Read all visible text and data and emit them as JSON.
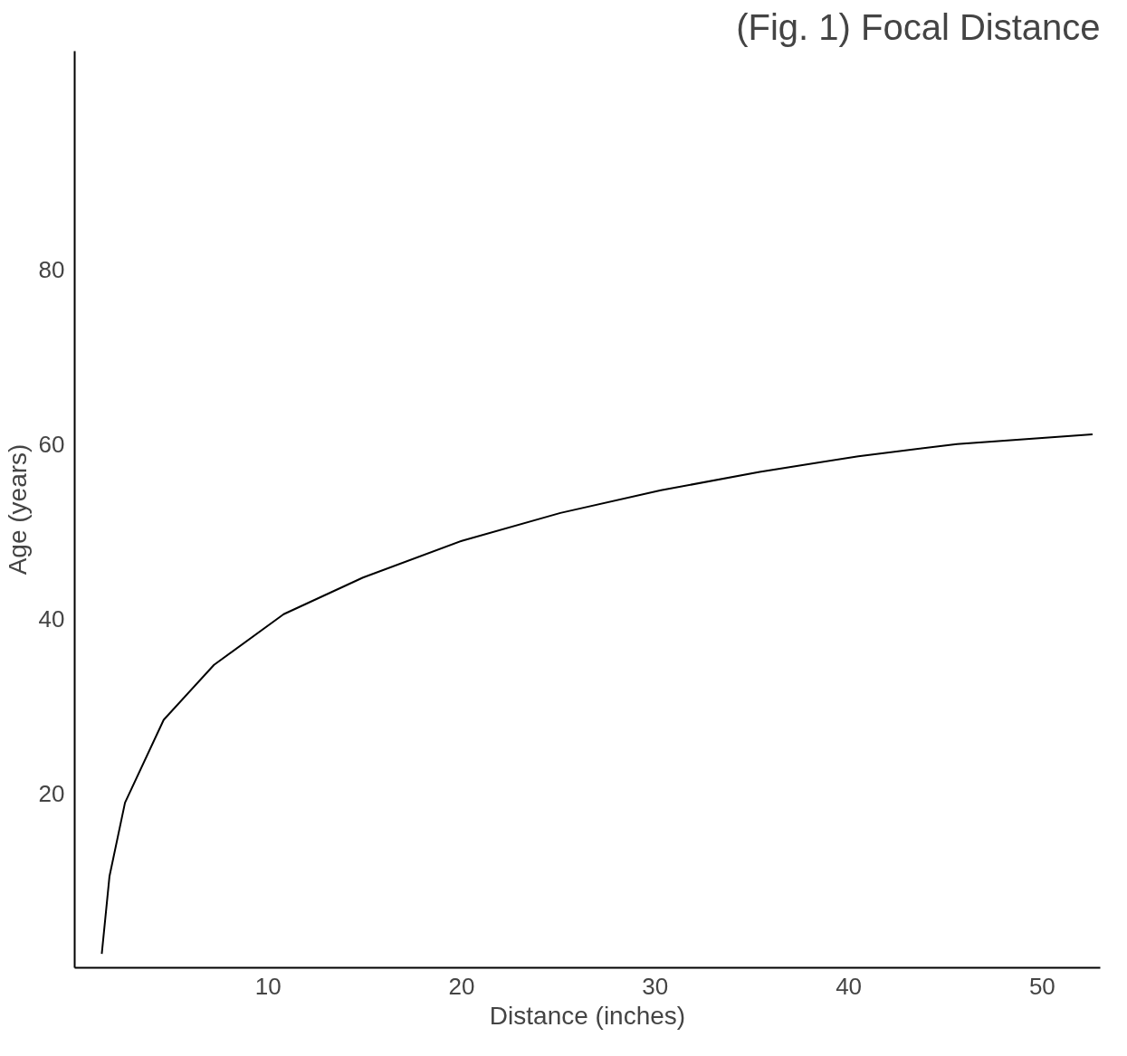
{
  "chart_data": {
    "type": "line",
    "title": "(Fig. 1) Focal Distance",
    "xlabel": "Distance (inches)",
    "ylabel": "Age (years)",
    "x": [
      1.4,
      1.8,
      2.6,
      4.6,
      7.2,
      10.8,
      14.9,
      20.0,
      25.1,
      30.3,
      35.4,
      40.5,
      45.6,
      52.6
    ],
    "series": [
      {
        "color": "#000000",
        "values": [
          1.6,
          10.5,
          18.9,
          28.4,
          34.7,
          40.5,
          44.7,
          48.9,
          52.1,
          54.7,
          56.8,
          58.6,
          60.0,
          61.1
        ]
      }
    ],
    "xlim": [
      0,
      53
    ],
    "ylim": [
      0,
      105
    ],
    "xticks": [
      10,
      20,
      30,
      40,
      50
    ],
    "yticks": [
      20,
      40,
      60,
      80
    ],
    "grid": false
  }
}
